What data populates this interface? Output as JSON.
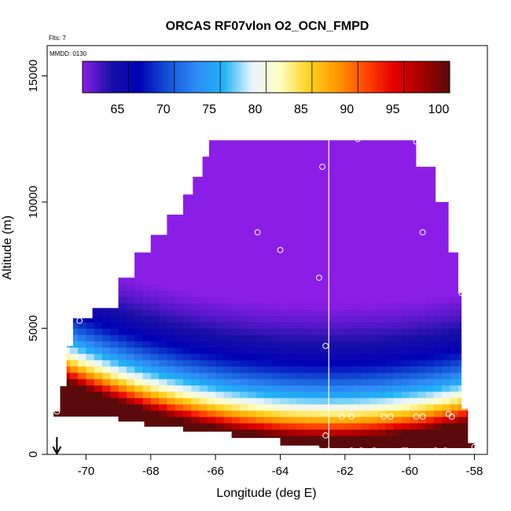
{
  "chart_data": {
    "type": "heatmap",
    "title": "ORCAS RF07vlon O2_OCN_FMPD",
    "annotations": {
      "flts": "Flts: 7",
      "mmdd": "MMDD: 0130"
    },
    "xlabel": "Longitude (deg E)",
    "ylabel": "Altitude (m)",
    "xlim": [
      -71.2,
      -57.6
    ],
    "ylim": [
      0,
      16200
    ],
    "xticks": [
      -70,
      -68,
      -66,
      -64,
      -62,
      -60,
      -58
    ],
    "yticks": [
      0,
      5000,
      10000,
      15000
    ],
    "colorbar": {
      "min": 60,
      "max": 100,
      "ticks": [
        65,
        70,
        75,
        80,
        85,
        90,
        95,
        100
      ],
      "colors": [
        "#8a1ee6",
        "#1a10a8",
        "#0000b4",
        "#1450d6",
        "#2e8af5",
        "#20b4f5",
        "#e8f4ff",
        "#ffffc0",
        "#ffd21e",
        "#ff9a00",
        "#ff4a00",
        "#e60000",
        "#a60000",
        "#5a0a0a"
      ]
    },
    "vertical_line_lon": -62.5,
    "arrow_lon": -70.9,
    "region_outline": [
      [
        -71.0,
        1700
      ],
      [
        -70.8,
        1700
      ],
      [
        -70.8,
        2700
      ],
      [
        -70.6,
        2700
      ],
      [
        -70.6,
        4300
      ],
      [
        -70.4,
        4300
      ],
      [
        -70.4,
        5400
      ],
      [
        -69.8,
        5400
      ],
      [
        -69.8,
        5800
      ],
      [
        -69.0,
        5800
      ],
      [
        -69.0,
        7000
      ],
      [
        -68.5,
        7000
      ],
      [
        -68.5,
        8000
      ],
      [
        -68.0,
        8000
      ],
      [
        -68.0,
        8700
      ],
      [
        -67.5,
        8700
      ],
      [
        -67.5,
        9500
      ],
      [
        -67.0,
        9500
      ],
      [
        -67.0,
        10300
      ],
      [
        -66.7,
        10300
      ],
      [
        -66.7,
        11000
      ],
      [
        -66.4,
        11000
      ],
      [
        -66.4,
        11800
      ],
      [
        -66.2,
        11800
      ],
      [
        -66.2,
        12450
      ],
      [
        -59.8,
        12450
      ],
      [
        -59.8,
        11400
      ],
      [
        -59.2,
        11400
      ],
      [
        -59.2,
        10000
      ],
      [
        -58.8,
        10000
      ],
      [
        -58.8,
        8000
      ],
      [
        -58.5,
        8000
      ],
      [
        -58.5,
        6400
      ],
      [
        -58.4,
        6400
      ],
      [
        -58.4,
        1800
      ],
      [
        -58.2,
        1800
      ],
      [
        -58.2,
        450
      ],
      [
        -58.0,
        450
      ],
      [
        -58.0,
        250
      ],
      [
        -62.8,
        250
      ],
      [
        -62.8,
        350
      ],
      [
        -64.0,
        350
      ],
      [
        -64.0,
        650
      ],
      [
        -65.5,
        650
      ],
      [
        -65.5,
        900
      ],
      [
        -67.0,
        900
      ],
      [
        -67.0,
        1100
      ],
      [
        -68.2,
        1100
      ],
      [
        -68.2,
        1300
      ],
      [
        -69.0,
        1300
      ],
      [
        -69.0,
        1500
      ],
      [
        -71.0,
        1500
      ]
    ],
    "sample_points": [
      {
        "lon": -66.3,
        "alt": 12700
      },
      {
        "lon": -62.7,
        "alt": 11400
      },
      {
        "lon": -61.6,
        "alt": 12500
      },
      {
        "lon": -59.8,
        "alt": 12400
      },
      {
        "lon": -64.7,
        "alt": 8800
      },
      {
        "lon": -64.0,
        "alt": 8100
      },
      {
        "lon": -59.6,
        "alt": 8800
      },
      {
        "lon": -62.8,
        "alt": 7000
      },
      {
        "lon": -58.4,
        "alt": 6400
      },
      {
        "lon": -70.2,
        "alt": 5300
      },
      {
        "lon": -62.6,
        "alt": 4300
      },
      {
        "lon": -70.9,
        "alt": 1700
      },
      {
        "lon": -62.1,
        "alt": 1500
      },
      {
        "lon": -61.8,
        "alt": 1500
      },
      {
        "lon": -60.8,
        "alt": 1500
      },
      {
        "lon": -60.6,
        "alt": 1500
      },
      {
        "lon": -59.8,
        "alt": 1500
      },
      {
        "lon": -59.6,
        "alt": 1500
      },
      {
        "lon": -58.8,
        "alt": 1600
      },
      {
        "lon": -58.7,
        "alt": 1500
      },
      {
        "lon": -62.6,
        "alt": 750
      },
      {
        "lon": -62.8,
        "alt": 150
      },
      {
        "lon": -62.5,
        "alt": 150
      },
      {
        "lon": -61.8,
        "alt": 150
      },
      {
        "lon": -61.5,
        "alt": 150
      },
      {
        "lon": -61.1,
        "alt": 150
      },
      {
        "lon": -60.2,
        "alt": 150
      },
      {
        "lon": -60.1,
        "alt": 150
      },
      {
        "lon": -59.2,
        "alt": 150
      },
      {
        "lon": -58.9,
        "alt": 150
      },
      {
        "lon": -58.0,
        "alt": 300
      }
    ]
  }
}
